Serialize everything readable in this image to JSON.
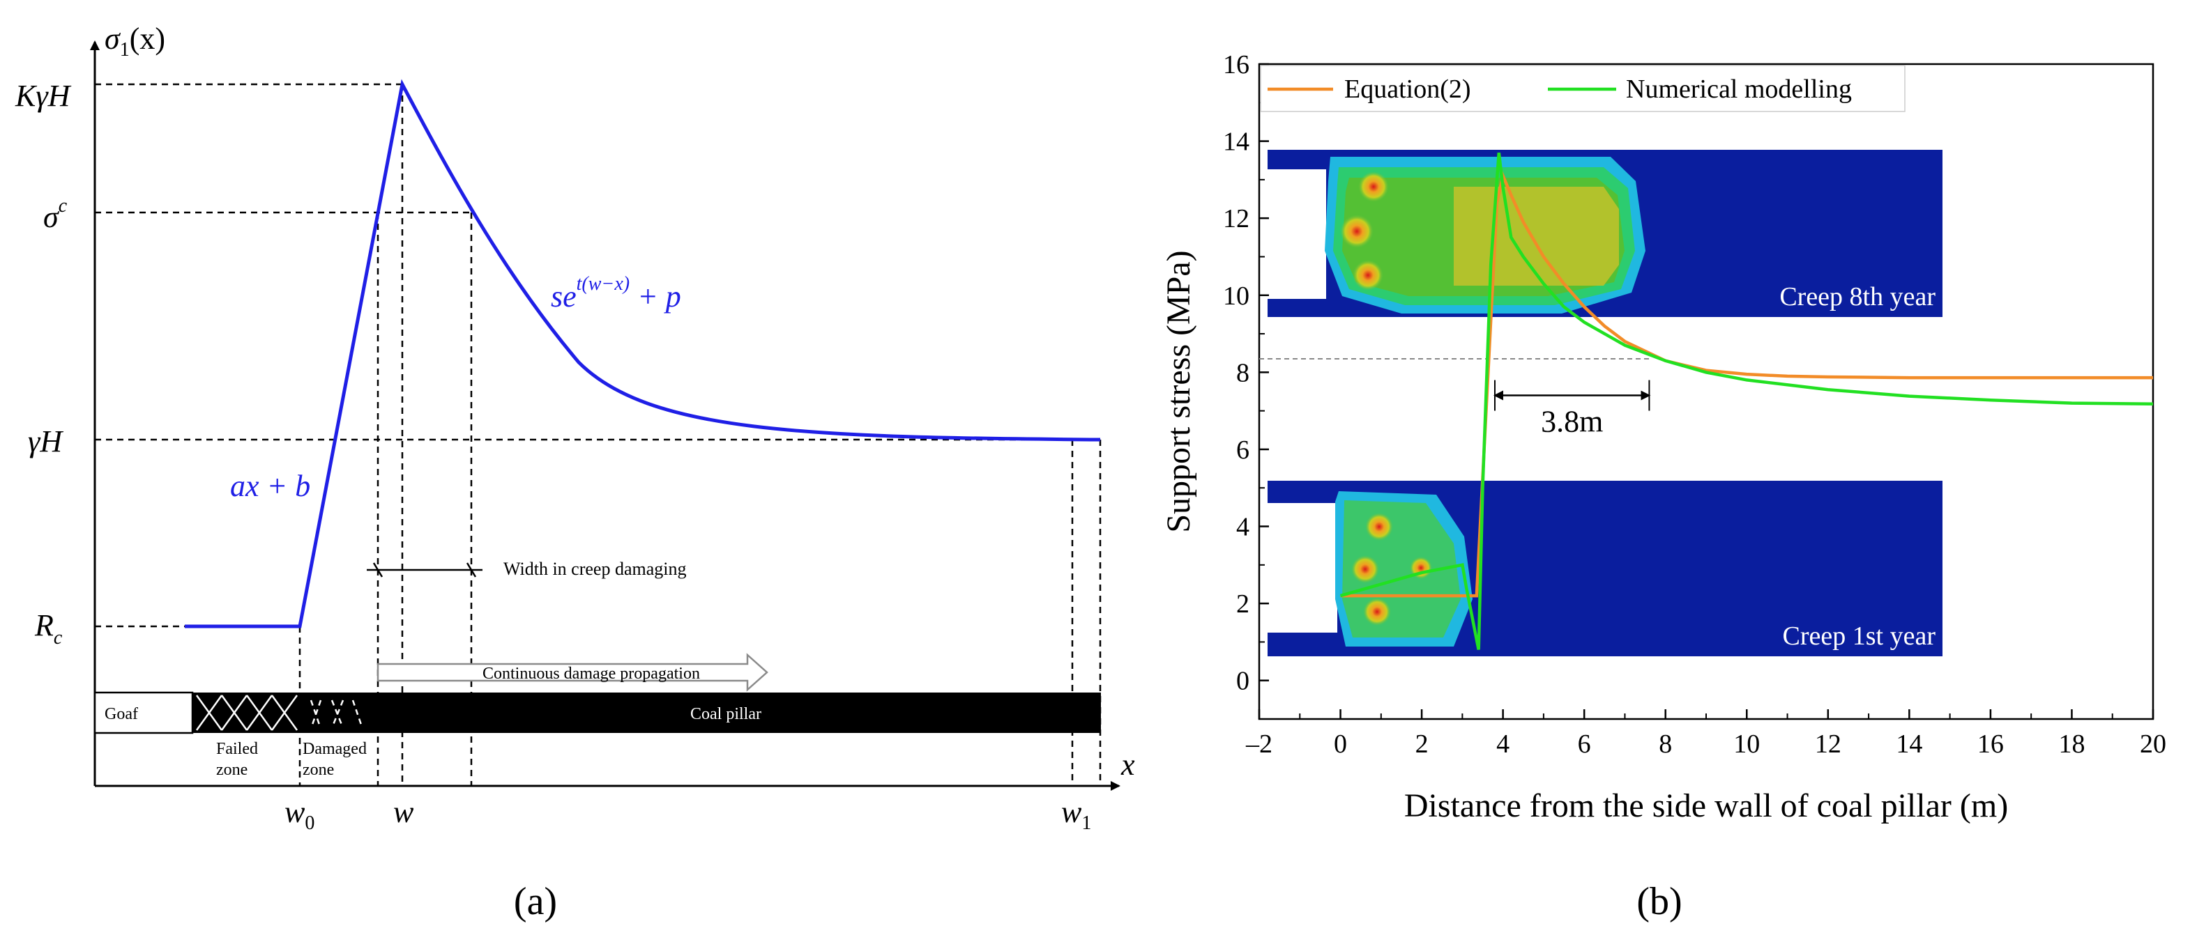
{
  "colors": {
    "curve_a": "#1f1fe6",
    "eq_line": "#f28c28",
    "num_line": "#22e022",
    "contour_bg": "#0a1e9e",
    "creep_label": "#ffffff"
  },
  "panel_a": {
    "caption": "(a)",
    "y_axis_label_base": "σ",
    "y_axis_label_sub": "1",
    "y_axis_label_arg": "(x)",
    "x_axis_label": "x",
    "y_levels": [
      {
        "id": "KgH",
        "base": "KγH",
        "sup": ""
      },
      {
        "id": "sc",
        "base": "σ",
        "sup": "c"
      },
      {
        "id": "gH",
        "base": "γH",
        "sup": ""
      },
      {
        "id": "Rc",
        "base": "R",
        "sub": "c"
      }
    ],
    "x_ticks": [
      {
        "id": "w0",
        "base": "w",
        "sub": "0"
      },
      {
        "id": "w",
        "base": "w",
        "sub": ""
      },
      {
        "id": "w1",
        "base": "w",
        "sub": "1"
      }
    ],
    "eq_linear": "ax + b",
    "eq_exp_base": "se",
    "eq_exp_sup": "t(w−x)",
    "eq_exp_tail": " + p",
    "width_label": "Width in creep damaging",
    "propagation_label": "Continuous damage propagation",
    "goaf_label": "Goaf",
    "coal_pillar_label": "Coal pillar",
    "failed_zone_label": [
      "Failed",
      "zone"
    ],
    "damaged_zone_label": [
      "Damaged",
      "zone"
    ]
  },
  "panel_b": {
    "caption": "(b)",
    "chart_data": {
      "type": "line",
      "title": "",
      "xlabel": "Distance from the side wall of coal pillar (m)",
      "ylabel": "Support stress (MPa)",
      "xlim": [
        -2,
        20
      ],
      "ylim": [
        -1,
        16
      ],
      "x_ticks": [
        -2,
        0,
        2,
        4,
        6,
        8,
        10,
        12,
        14,
        16,
        18,
        20
      ],
      "x_tick_labels": [
        "–2",
        "0",
        "2",
        "4",
        "6",
        "8",
        "10",
        "12",
        "14",
        "16",
        "18",
        "20"
      ],
      "y_ticks": [
        0,
        2,
        4,
        6,
        8,
        10,
        12,
        14,
        16
      ],
      "y_tick_labels": [
        "0",
        "2",
        "4",
        "6",
        "8",
        "10",
        "12",
        "14",
        "16"
      ],
      "legend_position": "top",
      "series": [
        {
          "name": "Equation(2)",
          "color": "#f28c28",
          "x": [
            0,
            3.35,
            3.85,
            4.0,
            4.2,
            4.5,
            5.0,
            5.5,
            6.0,
            6.5,
            7.0,
            8.0,
            9.0,
            10.0,
            11.0,
            12.0,
            14.0,
            16.0,
            18.0,
            20.0
          ],
          "y": [
            2.2,
            2.2,
            12.4,
            13.1,
            12.6,
            11.9,
            11.0,
            10.3,
            9.7,
            9.2,
            8.8,
            8.3,
            8.05,
            7.95,
            7.9,
            7.88,
            7.86,
            7.86,
            7.86,
            7.86
          ]
        },
        {
          "name": "Numerical modelling",
          "color": "#22e022",
          "x": [
            0,
            1.0,
            2.0,
            3.0,
            3.1,
            3.4,
            3.5,
            3.7,
            3.9,
            4.0,
            4.2,
            4.5,
            5.0,
            5.5,
            6.0,
            7.0,
            8.0,
            9.0,
            10.0,
            12.0,
            14.0,
            16.0,
            18.0,
            20.0
          ],
          "y": [
            2.2,
            2.5,
            2.8,
            3.0,
            2.4,
            0.8,
            5.0,
            10.8,
            13.7,
            12.8,
            11.5,
            11.0,
            10.3,
            9.7,
            9.3,
            8.7,
            8.3,
            8.0,
            7.8,
            7.55,
            7.38,
            7.28,
            7.2,
            7.18
          ]
        }
      ],
      "annotations": [
        {
          "text": "3.8m",
          "x_from": 3.8,
          "x_to": 7.6,
          "y": 7.4,
          "ref_line_y": 8.35
        },
        {
          "text": "Creep 8th year"
        },
        {
          "text": "Creep 1st year"
        }
      ]
    }
  }
}
